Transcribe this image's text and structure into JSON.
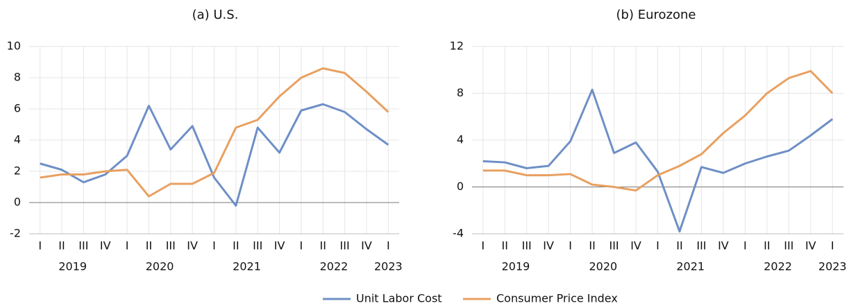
{
  "chart_data": [
    {
      "type": "line",
      "title": "(a) U.S.",
      "categories": [
        "I",
        "II",
        "III",
        "IV",
        "I",
        "II",
        "III",
        "IV",
        "I",
        "II",
        "III",
        "IV",
        "I",
        "II",
        "III",
        "IV",
        "I"
      ],
      "category_groups": [
        "2019",
        "2019",
        "2019",
        "2019",
        "2020",
        "2020",
        "2020",
        "2020",
        "2021",
        "2021",
        "2021",
        "2021",
        "2022",
        "2022",
        "2022",
        "2022",
        "2023"
      ],
      "series": [
        {
          "name": "Unit Labor Cost",
          "color": "#6e8fc6",
          "values": [
            2.5,
            2.1,
            1.3,
            1.8,
            3.0,
            6.2,
            3.4,
            4.9,
            1.6,
            -0.2,
            4.8,
            3.2,
            5.9,
            6.3,
            5.8,
            4.7,
            3.7
          ]
        },
        {
          "name": "Consumer Price Index",
          "color": "#e8a061",
          "values": [
            1.6,
            1.8,
            1.8,
            2.0,
            2.1,
            0.4,
            1.2,
            1.2,
            1.9,
            4.8,
            5.3,
            6.8,
            8.0,
            8.6,
            8.3,
            7.1,
            5.8
          ]
        }
      ],
      "ylim": [
        -2,
        10
      ],
      "yticks": [
        -2,
        0,
        2,
        4,
        6,
        8,
        10
      ],
      "grid": true
    },
    {
      "type": "line",
      "title": "(b) Eurozone",
      "categories": [
        "I",
        "II",
        "III",
        "IV",
        "I",
        "II",
        "III",
        "IV",
        "I",
        "II",
        "III",
        "IV",
        "I",
        "II",
        "III",
        "IV",
        "I"
      ],
      "category_groups": [
        "2019",
        "2019",
        "2019",
        "2019",
        "2020",
        "2020",
        "2020",
        "2020",
        "2021",
        "2021",
        "2021",
        "2021",
        "2022",
        "2022",
        "2022",
        "2022",
        "2023"
      ],
      "series": [
        {
          "color": "#6e8fc6",
          "values": [
            2.2,
            2.1,
            1.6,
            1.8,
            3.9,
            8.3,
            2.9,
            3.8,
            1.3,
            -3.8,
            1.7,
            1.2,
            2.0,
            2.6,
            3.1,
            4.4,
            5.8
          ]
        },
        {
          "color": "#e8a061",
          "values": [
            1.4,
            1.4,
            1.0,
            1.0,
            1.1,
            0.2,
            0.0,
            -0.3,
            1.0,
            1.8,
            2.8,
            4.6,
            6.1,
            8.0,
            9.3,
            9.9,
            8.0
          ]
        }
      ],
      "ylim": [
        -4,
        12
      ],
      "yticks": [
        -4,
        0,
        4,
        8,
        12
      ],
      "grid": true
    }
  ]
}
